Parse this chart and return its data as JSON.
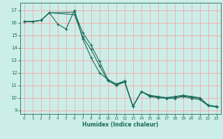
{
  "xlabel": "Humidex (Indice chaleur)",
  "bg_color": "#cceee8",
  "grid_color": "#ff9999",
  "line_color": "#1a6b5a",
  "xlim": [
    -0.5,
    23.5
  ],
  "ylim": [
    8.7,
    17.6
  ],
  "yticks": [
    9,
    10,
    11,
    12,
    13,
    14,
    15,
    16,
    17
  ],
  "xticks": [
    0,
    1,
    2,
    3,
    4,
    5,
    6,
    7,
    8,
    9,
    10,
    11,
    12,
    13,
    14,
    15,
    16,
    17,
    18,
    19,
    20,
    21,
    22,
    23
  ],
  "line1_x": [
    0,
    1,
    2,
    3,
    4,
    5,
    6,
    7,
    8,
    9,
    10,
    11,
    12,
    13,
    14,
    15,
    16,
    17,
    18,
    19,
    20,
    21,
    22,
    23
  ],
  "line1_y": [
    16.1,
    16.1,
    16.2,
    16.8,
    15.9,
    15.5,
    17.0,
    14.7,
    13.2,
    12.0,
    11.45,
    11.1,
    11.35,
    9.3,
    10.5,
    10.2,
    10.1,
    10.0,
    10.1,
    10.2,
    10.1,
    10.0,
    9.4,
    9.3
  ],
  "line2_x": [
    0,
    1,
    2,
    3,
    6,
    7,
    8,
    9,
    10,
    11,
    12,
    13,
    14,
    15,
    16,
    17,
    18,
    19,
    20,
    21,
    22,
    23
  ],
  "line2_y": [
    16.1,
    16.1,
    16.2,
    16.8,
    16.85,
    15.2,
    14.2,
    12.9,
    11.45,
    11.05,
    11.3,
    9.3,
    10.5,
    10.15,
    10.05,
    10.0,
    10.05,
    10.15,
    10.05,
    9.95,
    9.4,
    9.3
  ],
  "line3_x": [
    0,
    1,
    2,
    3,
    6,
    7,
    8,
    9,
    10,
    11,
    12,
    13,
    14,
    15,
    16,
    17,
    18,
    19,
    20,
    21,
    22,
    23
  ],
  "line3_y": [
    16.1,
    16.1,
    16.2,
    16.8,
    16.65,
    14.85,
    13.85,
    12.55,
    11.35,
    11.0,
    11.25,
    9.3,
    10.5,
    10.1,
    10.0,
    9.95,
    9.95,
    10.1,
    9.95,
    9.85,
    9.35,
    9.25
  ]
}
